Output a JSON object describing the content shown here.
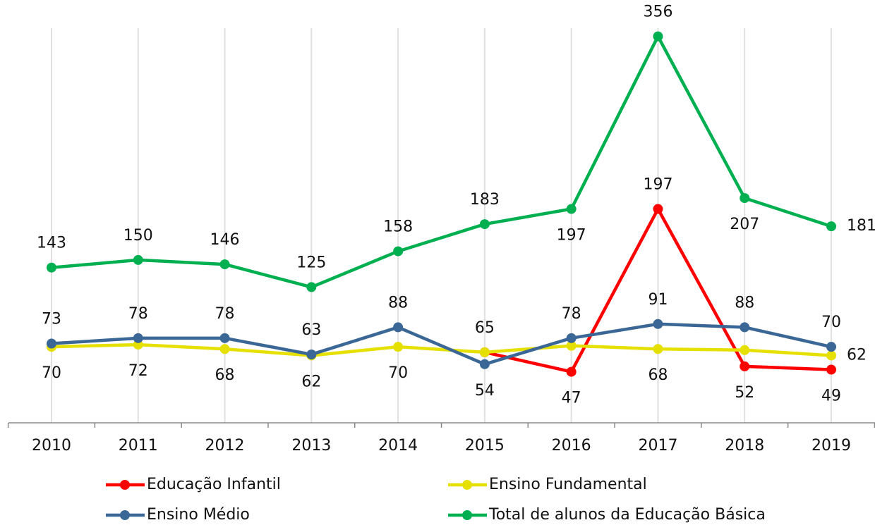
{
  "chart_data": {
    "type": "line",
    "categories": [
      "2010",
      "2011",
      "2012",
      "2013",
      "2014",
      "2015",
      "2016",
      "2017",
      "2018",
      "2019"
    ],
    "ylim": [
      0,
      370
    ],
    "grid": true,
    "legend": "bottom",
    "series": [
      {
        "name": "Educação Infantil",
        "color": "#ff0000",
        "values": [
          null,
          null,
          null,
          null,
          null,
          65,
          47,
          197,
          52,
          49
        ],
        "value_labels": [
          null,
          null,
          null,
          null,
          null,
          null,
          "47",
          "197",
          "52",
          "49"
        ]
      },
      {
        "name": "Ensino Fundamental",
        "color": "#e6e000",
        "values": [
          70,
          72,
          68,
          62,
          70,
          65,
          71,
          68,
          67,
          62
        ],
        "value_labels": [
          "70",
          "72",
          "68",
          "62",
          "70",
          "65",
          null,
          "68",
          null,
          "62"
        ]
      },
      {
        "name": "Ensino Médio",
        "color": "#3a6795",
        "values": [
          73,
          78,
          78,
          63,
          88,
          54,
          78,
          91,
          88,
          70
        ],
        "value_labels": [
          "73",
          "78",
          "78",
          "63",
          "88",
          "54",
          "78",
          "91",
          "88",
          "70"
        ]
      },
      {
        "name": "Total de alunos da Educação Básica",
        "color": "#00b050",
        "values": [
          143,
          150,
          146,
          125,
          158,
          183,
          197,
          356,
          207,
          181
        ],
        "value_labels": [
          "143",
          "150",
          "146",
          "125",
          "158",
          "183",
          "197",
          "356",
          "207",
          "181"
        ]
      }
    ]
  }
}
